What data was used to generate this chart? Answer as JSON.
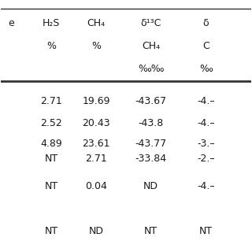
{
  "headers": [
    [
      "e",
      "H₂S\n%",
      "CH₄\n%",
      "δ¹³C\nCH₄\n‰",
      "δ\nC\n‰"
    ],
    [
      "",
      "",
      "",
      "",
      ""
    ]
  ],
  "col_labels_line1": [
    "e",
    "H₂S",
    "CH₄",
    "δ¹³C",
    "δ"
  ],
  "col_labels_line2": [
    "",
    "%",
    "%",
    "CH₄",
    "C"
  ],
  "col_labels_line3": [
    "",
    "",
    "",
    "‰‰",
    "‰"
  ],
  "rows": [
    [
      "",
      "2.71",
      "19.69",
      "-43.67",
      "-4.–"
    ],
    [
      "",
      "2.52",
      "20.43",
      "-43.8",
      "-4.–"
    ],
    [
      "",
      "4.89",
      "23.61",
      "-43.77",
      "-3.–"
    ],
    [
      "",
      "NT",
      "2.71",
      "-33.84",
      "-2.–"
    ],
    [
      "",
      "NT",
      "0.04",
      "ND",
      "-4.–"
    ],
    [
      "",
      "",
      "",
      "",
      ""
    ],
    [
      "",
      "NT",
      "ND",
      "NT",
      "NT"
    ]
  ],
  "background_color": "#ffffff",
  "text_color": "#1a1a1a",
  "line_color": "#333333",
  "font_size": 9
}
